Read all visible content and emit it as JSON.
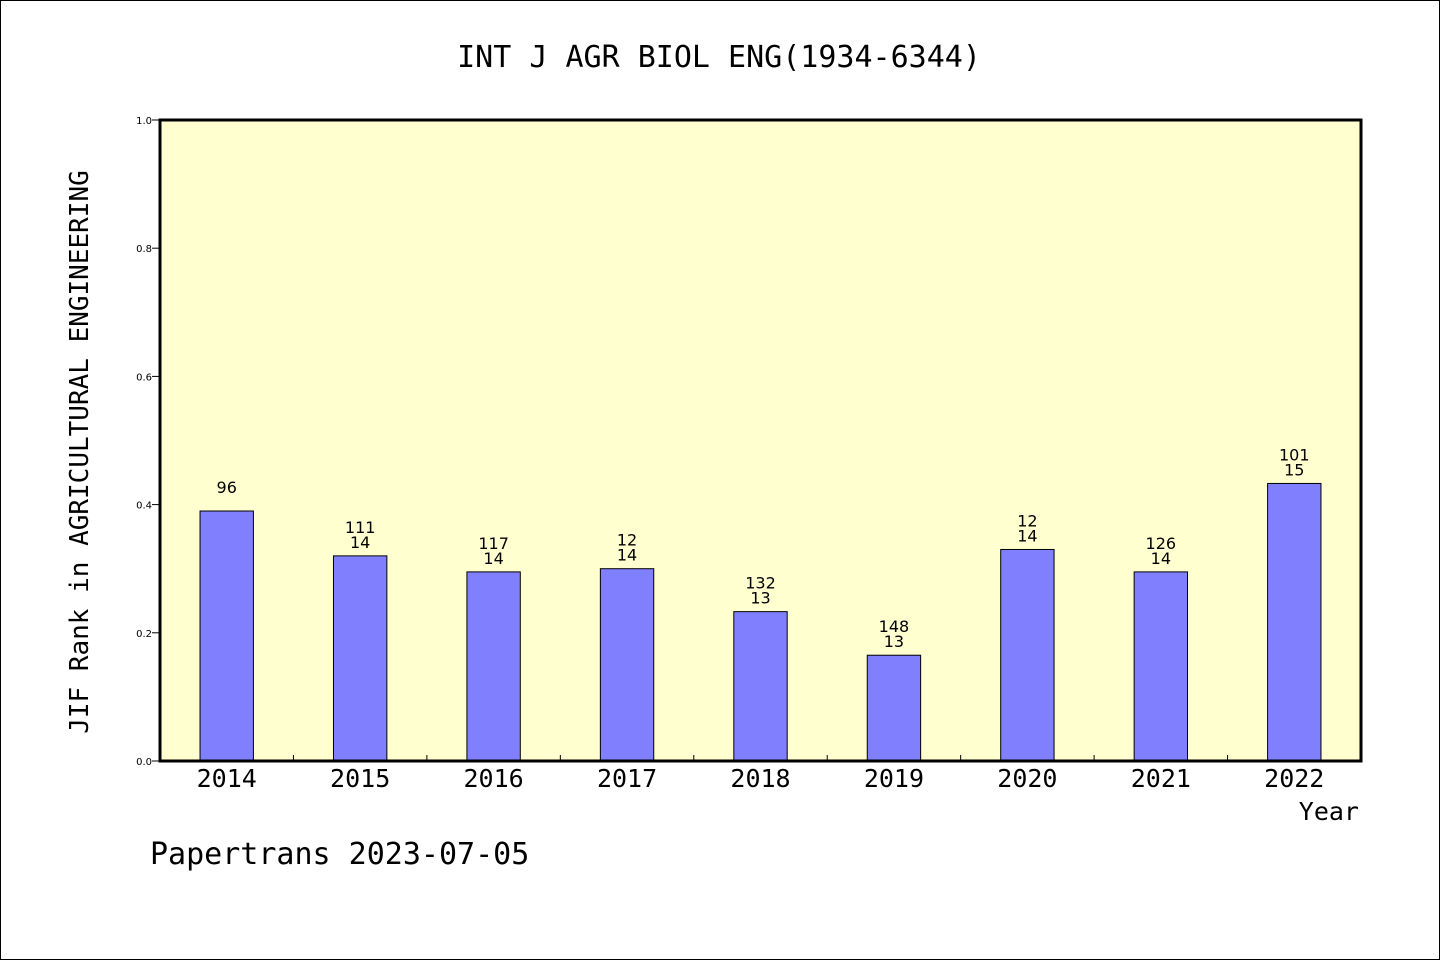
{
  "chart_data": {
    "type": "bar",
    "title": "INT J AGR BIOL ENG(1934-6344)",
    "xlabel": "Year",
    "ylabel": "JIF Rank in AGRICULTURAL ENGINEERING",
    "ylim": [
      0,
      1.0
    ],
    "yticks": [
      "0.0",
      "0.2",
      "0.4",
      "0.6",
      "0.8",
      "1.0"
    ],
    "categories": [
      "2014",
      "2015",
      "2016",
      "2017",
      "2018",
      "2019",
      "2020",
      "2021",
      "2022"
    ],
    "values": [
      0.39,
      0.32,
      0.295,
      0.3,
      0.233,
      0.165,
      0.33,
      0.295,
      0.433
    ],
    "labels": [
      [
        "96"
      ],
      [
        "111",
        "14"
      ],
      [
        "117",
        "14"
      ],
      [
        "12",
        "14"
      ],
      [
        "132",
        "13"
      ],
      [
        "148",
        "13"
      ],
      [
        "12",
        "14"
      ],
      [
        "126",
        "14"
      ],
      [
        "101",
        "15"
      ]
    ],
    "grid": false,
    "colors": {
      "bar": "#8080ff",
      "plot_bg": "#ffffd0",
      "axis": "#000000"
    }
  },
  "footer": "Papertrans 2023-07-05"
}
